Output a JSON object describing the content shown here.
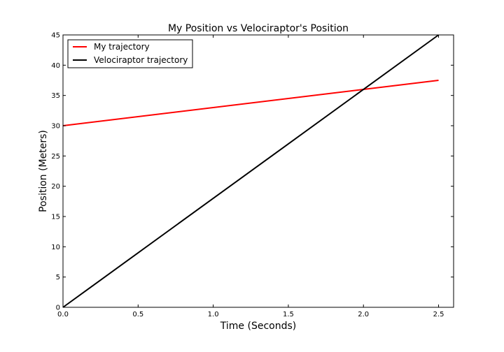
{
  "chart_data": {
    "type": "line",
    "title": "My Position vs Velociraptor's Position",
    "xlabel": "Time (Seconds)",
    "ylabel": "Position (Meters)",
    "xlim": [
      0,
      2.6
    ],
    "ylim": [
      0,
      45
    ],
    "xticks": [
      0.0,
      0.5,
      1.0,
      1.5,
      2.0,
      2.5
    ],
    "xtick_labels": [
      "0.0",
      "0.5",
      "1.0",
      "1.5",
      "2.0",
      "2.5"
    ],
    "yticks": [
      0,
      5,
      10,
      15,
      20,
      25,
      30,
      35,
      40,
      45
    ],
    "ytick_labels": [
      "0",
      "5",
      "10",
      "15",
      "20",
      "25",
      "30",
      "35",
      "40",
      "45"
    ],
    "grid": false,
    "legend_position": "top-left",
    "series": [
      {
        "name": "My trajectory",
        "color": "#ff0000",
        "x": [
          0,
          2.5
        ],
        "y": [
          30,
          37.5
        ]
      },
      {
        "name": "Velociraptor trajectory",
        "color": "#000000",
        "x": [
          0,
          2.5
        ],
        "y": [
          0,
          45
        ]
      }
    ]
  }
}
